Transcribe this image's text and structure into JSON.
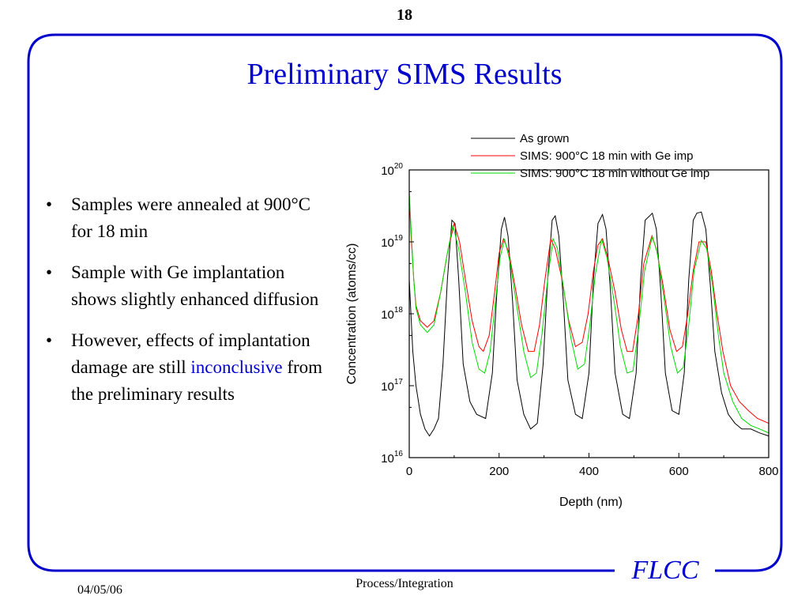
{
  "page_number": "18",
  "title": "Preliminary SIMS Results",
  "bullets": [
    {
      "parts": [
        {
          "text": "Samples were annealed at 900°C for 18 min",
          "highlight": false
        }
      ]
    },
    {
      "parts": [
        {
          "text": "Sample with Ge implantation shows slightly enhanced diffusion",
          "highlight": false
        }
      ]
    },
    {
      "parts": [
        {
          "text": "However, effects of implantation damage are still ",
          "highlight": false
        },
        {
          "text": "inconclusive",
          "highlight": true
        },
        {
          "text": " from the preliminary results",
          "highlight": false
        }
      ]
    }
  ],
  "footer": {
    "date": "04/05/06",
    "center": "Process/Integration",
    "logo": "FLCC"
  },
  "colors": {
    "frame": "#0000cc",
    "title": "#0000cc",
    "highlight": "#0000cc",
    "as_grown": "#000000",
    "with_ge": "#ff0000",
    "without_ge": "#00dd00"
  },
  "chart_data": {
    "type": "line",
    "xlabel": "Depth (nm)",
    "ylabel": "Concentration (atoms/cc)",
    "xlim": [
      0,
      800
    ],
    "ylim": [
      1e+16,
      1e+20
    ],
    "yscale": "log",
    "x_ticks": [
      "0",
      "200",
      "400",
      "600",
      "800"
    ],
    "y_ticks": [
      {
        "base": "10",
        "exp": "16"
      },
      {
        "base": "10",
        "exp": "17"
      },
      {
        "base": "10",
        "exp": "18"
      },
      {
        "base": "10",
        "exp": "19"
      },
      {
        "base": "10",
        "exp": "20"
      }
    ],
    "legend_position": "top-right",
    "series": [
      {
        "name": "As grown",
        "color": "#000000",
        "points": [
          [
            0,
            3e+18
          ],
          [
            8,
            3e+17
          ],
          [
            15,
            1e+17
          ],
          [
            25,
            4e+16
          ],
          [
            35,
            2.5e+16
          ],
          [
            45,
            2e+16
          ],
          [
            55,
            2.5e+16
          ],
          [
            65,
            3.5e+16
          ],
          [
            75,
            2e+17
          ],
          [
            85,
            3e+18
          ],
          [
            95,
            2e+19
          ],
          [
            102,
            1.8e+19
          ],
          [
            110,
            3e+18
          ],
          [
            120,
            2e+17
          ],
          [
            135,
            6e+16
          ],
          [
            150,
            4e+16
          ],
          [
            170,
            3.5e+16
          ],
          [
            185,
            1.5e+17
          ],
          [
            195,
            2e+18
          ],
          [
            205,
            1.5e+19
          ],
          [
            212,
            2.2e+19
          ],
          [
            220,
            1.2e+19
          ],
          [
            230,
            1.5e+18
          ],
          [
            240,
            1.2e+17
          ],
          [
            255,
            4e+16
          ],
          [
            270,
            2.5e+16
          ],
          [
            285,
            3e+16
          ],
          [
            298,
            2e+17
          ],
          [
            308,
            3e+18
          ],
          [
            318,
            2e+19
          ],
          [
            325,
            2.3e+19
          ],
          [
            333,
            1.2e+19
          ],
          [
            343,
            1.5e+18
          ],
          [
            353,
            1.2e+17
          ],
          [
            370,
            4e+16
          ],
          [
            385,
            3.5e+16
          ],
          [
            400,
            1.5e+17
          ],
          [
            410,
            3e+18
          ],
          [
            420,
            1.8e+19
          ],
          [
            430,
            2.4e+19
          ],
          [
            438,
            1.5e+19
          ],
          [
            448,
            2e+18
          ],
          [
            458,
            1.5e+17
          ],
          [
            475,
            4e+16
          ],
          [
            490,
            3.5e+16
          ],
          [
            505,
            1.5e+17
          ],
          [
            515,
            3e+18
          ],
          [
            525,
            2e+19
          ],
          [
            541,
            2.5e+19
          ],
          [
            550,
            1.5e+19
          ],
          [
            560,
            2e+18
          ],
          [
            570,
            1.5e+17
          ],
          [
            585,
            4.5e+16
          ],
          [
            600,
            4e+16
          ],
          [
            612,
            1.5e+17
          ],
          [
            622,
            3e+18
          ],
          [
            632,
            2e+19
          ],
          [
            640,
            2.5e+19
          ],
          [
            650,
            2.6e+19
          ],
          [
            660,
            1.5e+19
          ],
          [
            670,
            2.5e+18
          ],
          [
            680,
            3e+17
          ],
          [
            695,
            8e+16
          ],
          [
            710,
            4e+16
          ],
          [
            725,
            3e+16
          ],
          [
            740,
            2.5e+16
          ],
          [
            760,
            2.5e+16
          ],
          [
            780,
            2.2e+16
          ],
          [
            800,
            2e+16
          ]
        ]
      },
      {
        "name": "SIMS: 900°C 18 min with Ge imp",
        "color": "#ff0000",
        "points": [
          [
            0,
            4e+19
          ],
          [
            5,
            1e+19
          ],
          [
            10,
            3e+18
          ],
          [
            15,
            1.3e+18
          ],
          [
            25,
            8e+17
          ],
          [
            40,
            6.5e+17
          ],
          [
            55,
            8e+17
          ],
          [
            70,
            2e+18
          ],
          [
            85,
            7e+18
          ],
          [
            100,
            1.8e+19
          ],
          [
            112,
            1e+19
          ],
          [
            125,
            3e+18
          ],
          [
            140,
            8e+17
          ],
          [
            155,
            3.5e+17
          ],
          [
            165,
            3e+17
          ],
          [
            178,
            5e+17
          ],
          [
            190,
            2e+18
          ],
          [
            200,
            7e+18
          ],
          [
            210,
            1.1e+19
          ],
          [
            222,
            7e+18
          ],
          [
            235,
            2.5e+18
          ],
          [
            250,
            7e+17
          ],
          [
            265,
            3e+17
          ],
          [
            278,
            3e+17
          ],
          [
            290,
            7e+17
          ],
          [
            302,
            3e+18
          ],
          [
            315,
            1.1e+19
          ],
          [
            325,
            8e+18
          ],
          [
            340,
            3e+18
          ],
          [
            355,
            8e+17
          ],
          [
            370,
            3.5e+17
          ],
          [
            385,
            4e+17
          ],
          [
            398,
            1e+18
          ],
          [
            410,
            4e+18
          ],
          [
            420,
            9e+18
          ],
          [
            430,
            1.1e+19
          ],
          [
            442,
            6e+18
          ],
          [
            458,
            2e+18
          ],
          [
            472,
            6e+17
          ],
          [
            485,
            3e+17
          ],
          [
            497,
            3e+17
          ],
          [
            510,
            1e+18
          ],
          [
            522,
            5e+18
          ],
          [
            540,
            1.2e+19
          ],
          [
            550,
            8e+18
          ],
          [
            565,
            2.5e+18
          ],
          [
            580,
            6e+17
          ],
          [
            595,
            3e+17
          ],
          [
            608,
            3.5e+17
          ],
          [
            620,
            1e+18
          ],
          [
            632,
            4e+18
          ],
          [
            645,
            1e+19
          ],
          [
            660,
            1e+19
          ],
          [
            672,
            4e+18
          ],
          [
            685,
            1e+18
          ],
          [
            698,
            3e+17
          ],
          [
            715,
            1e+17
          ],
          [
            735,
            6e+16
          ],
          [
            755,
            4.5e+16
          ],
          [
            775,
            3.5e+16
          ],
          [
            800,
            3e+16
          ]
        ]
      },
      {
        "name": "SIMS: 900°C 18 min without Ge imp",
        "color": "#00dd00",
        "points": [
          [
            0,
            5e+19
          ],
          [
            5,
            1.2e+19
          ],
          [
            10,
            3e+18
          ],
          [
            15,
            1.2e+18
          ],
          [
            25,
            7e+17
          ],
          [
            40,
            5.5e+17
          ],
          [
            55,
            7e+17
          ],
          [
            70,
            2e+18
          ],
          [
            85,
            7e+18
          ],
          [
            97,
            1.7e+19
          ],
          [
            110,
            8e+18
          ],
          [
            125,
            2e+18
          ],
          [
            140,
            4e+17
          ],
          [
            155,
            1.7e+17
          ],
          [
            168,
            1.5e+17
          ],
          [
            180,
            3e+17
          ],
          [
            192,
            1.5e+18
          ],
          [
            202,
            6e+18
          ],
          [
            212,
            1.1e+19
          ],
          [
            225,
            5e+18
          ],
          [
            240,
            1.2e+18
          ],
          [
            255,
            3e+17
          ],
          [
            270,
            1.3e+17
          ],
          [
            283,
            1.5e+17
          ],
          [
            295,
            5e+17
          ],
          [
            308,
            3e+18
          ],
          [
            320,
            1.1e+19
          ],
          [
            330,
            8e+18
          ],
          [
            345,
            2e+18
          ],
          [
            360,
            4.5e+17
          ],
          [
            375,
            1.7e+17
          ],
          [
            390,
            2e+17
          ],
          [
            402,
            7e+17
          ],
          [
            414,
            3.5e+18
          ],
          [
            428,
            1.1e+19
          ],
          [
            440,
            6e+18
          ],
          [
            456,
            1.5e+18
          ],
          [
            470,
            3.5e+17
          ],
          [
            485,
            1.5e+17
          ],
          [
            498,
            1.6e+17
          ],
          [
            510,
            6e+17
          ],
          [
            524,
            4e+18
          ],
          [
            541,
            1.2e+19
          ],
          [
            552,
            7e+18
          ],
          [
            568,
            1.5e+18
          ],
          [
            582,
            3.5e+17
          ],
          [
            597,
            1.5e+17
          ],
          [
            610,
            1.8e+17
          ],
          [
            622,
            7e+17
          ],
          [
            634,
            4e+18
          ],
          [
            650,
            1.05e+19
          ],
          [
            662,
            8e+18
          ],
          [
            675,
            2.5e+18
          ],
          [
            688,
            5e+17
          ],
          [
            700,
            1.5e+17
          ],
          [
            720,
            6e+16
          ],
          [
            740,
            3.5e+16
          ],
          [
            760,
            2.8e+16
          ],
          [
            780,
            2.5e+16
          ],
          [
            800,
            2.2e+16
          ]
        ]
      }
    ]
  }
}
